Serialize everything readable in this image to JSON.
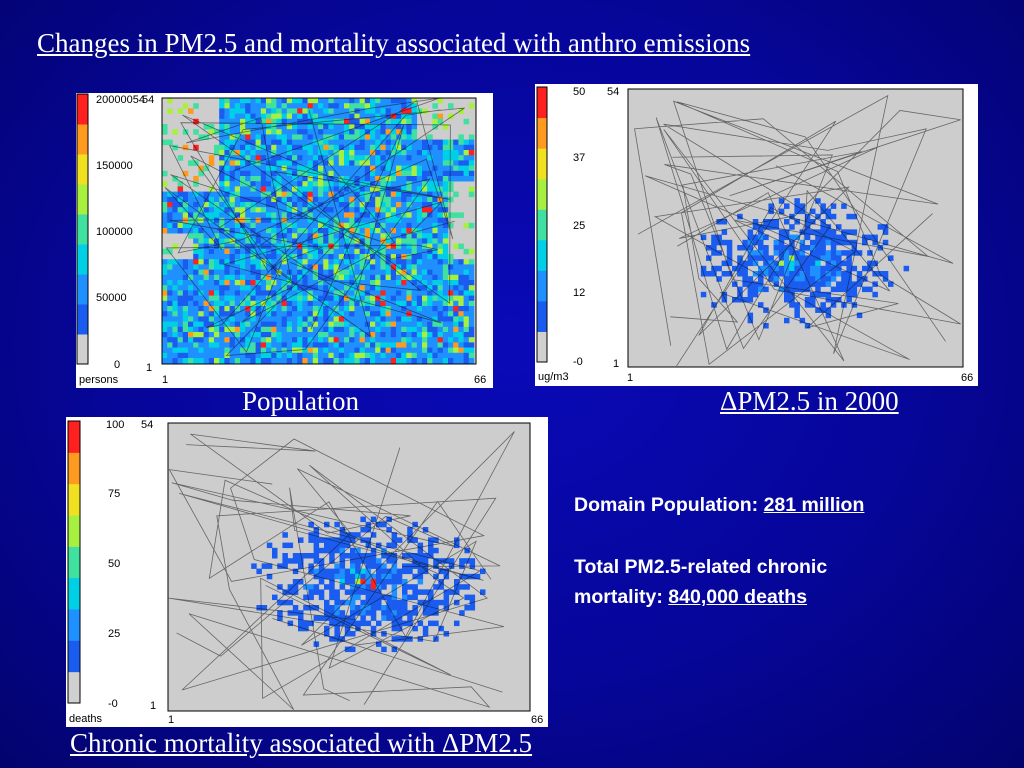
{
  "title": "Changes in PM2.5 and mortality associated with anthro emissions",
  "captions": {
    "population": "Population",
    "delta_pm25": "ΔPM2.5 in 2000",
    "mortality": "Chronic mortality associated with ΔPM2.5"
  },
  "stats": {
    "population_label": "Domain Population:",
    "population_value": "281 million",
    "mortality_label_line1": "Total PM2.5-related chronic",
    "mortality_label_line2": "mortality:",
    "mortality_value": "840,000 deaths"
  },
  "maps": {
    "population": {
      "unit": "persons",
      "colorbar_ticks": [
        "20000054",
        "150000",
        "100000",
        "50000",
        "0"
      ],
      "y_max": "54",
      "y_min": "1",
      "x_min": "1",
      "x_max": "66"
    },
    "delta_pm25": {
      "unit": "ug/m3",
      "colorbar_ticks": [
        "50",
        "37",
        "25",
        "12",
        "-0"
      ],
      "y_max": "54",
      "y_min": "1",
      "x_min": "1",
      "x_max": "66"
    },
    "mortality": {
      "unit": "deaths",
      "colorbar_ticks": [
        "100",
        "75",
        "50",
        "25",
        "-0"
      ],
      "y_max": "54",
      "y_min": "1",
      "x_min": "1",
      "x_max": "66"
    }
  },
  "colors": {
    "colorbar": [
      "#d0d0d0",
      "#1a5cf0",
      "#1e90ff",
      "#00d0e6",
      "#40e0a0",
      "#a8f040",
      "#f0e020",
      "#ff9a20",
      "#ff2020"
    ],
    "map_background": "#cdcdcd"
  }
}
